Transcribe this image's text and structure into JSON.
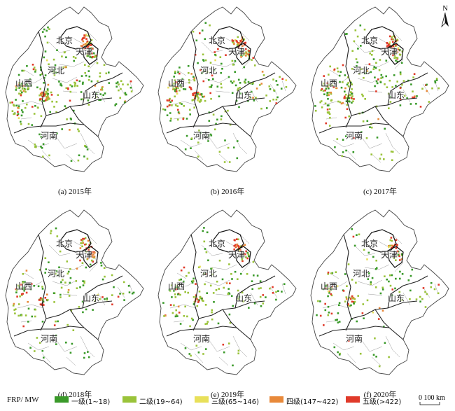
{
  "map": {
    "panels": [
      {
        "caption": "(a) 2015年",
        "seed": 11,
        "density": 1.0
      },
      {
        "caption": "(b) 2016年",
        "seed": 23,
        "density": 0.95
      },
      {
        "caption": "(c) 2017年",
        "seed": 37,
        "density": 0.85
      },
      {
        "caption": "(d) 2018年",
        "seed": 41,
        "density": 0.6
      },
      {
        "caption": "(e) 2019年",
        "seed": 53,
        "density": 0.62
      },
      {
        "caption": "(f) 2020年",
        "seed": 67,
        "density": 0.55
      }
    ],
    "region_labels": {
      "beijing": "北京",
      "tianjin": "天津",
      "hebei": "河北",
      "shanxi": "山西",
      "shandong": "山东",
      "henan": "河南"
    },
    "north_label": "N",
    "scale_label": "0  100 km"
  },
  "legend": {
    "title": "FRP/ MW",
    "classes": [
      {
        "label": "一级(1~18)",
        "color": "#3a9a2a"
      },
      {
        "label": "二级(19~64)",
        "color": "#9ac33a"
      },
      {
        "label": "三级(65~146)",
        "color": "#e8e05a"
      },
      {
        "label": "四级(147~422)",
        "color": "#e8893a"
      },
      {
        "label": "五级(>422)",
        "color": "#e03a2a"
      }
    ]
  }
}
